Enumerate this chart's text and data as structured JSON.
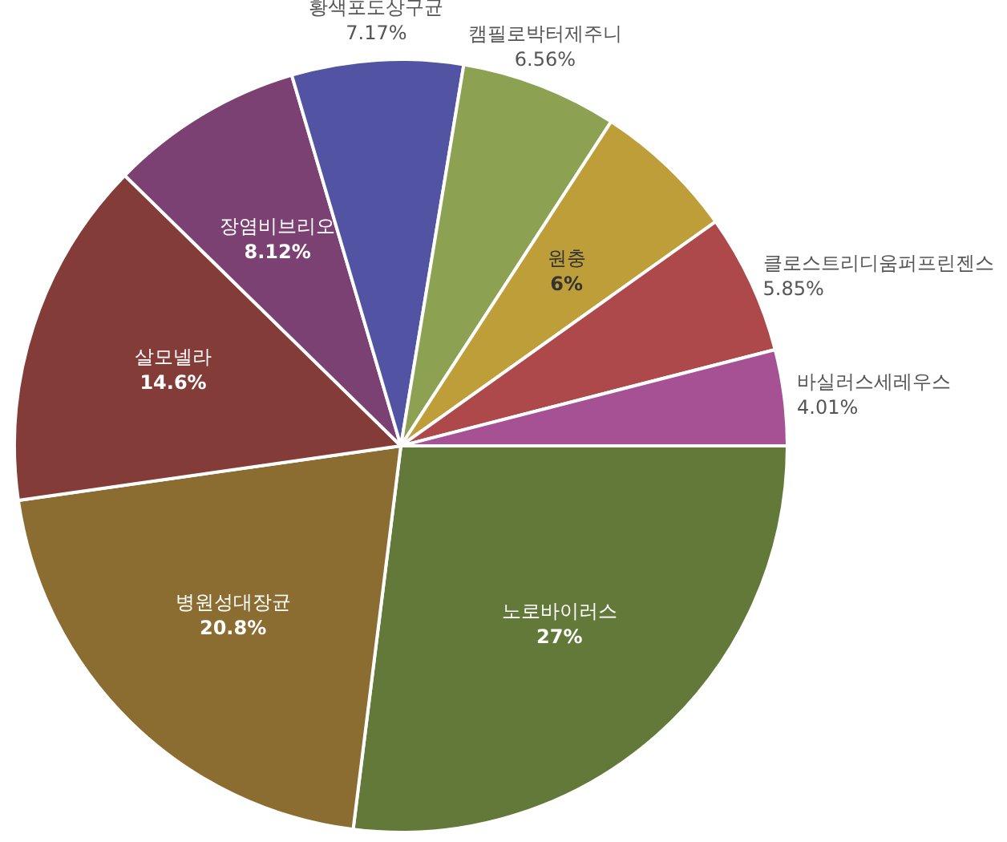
{
  "chart_data": {
    "type": "pie",
    "categories": [
      "노로바이러스",
      "병원성대장균",
      "살모넬라",
      "장염비브리오",
      "황색포도상구균",
      "캠필로박터제주니",
      "원충",
      "클로스트리디움퍼프린젠스",
      "바실러스세레우스"
    ],
    "values": [
      27,
      20.8,
      14.6,
      8.12,
      7.17,
      6.56,
      6,
      5.85,
      4.01
    ],
    "colors": [
      "#637939",
      "#8c6d31",
      "#843c39",
      "#7b4173",
      "#5254a3",
      "#8ca252",
      "#bd9e39",
      "#ad494a",
      "#a55194"
    ],
    "value_labels": [
      "27%",
      "20.8%",
      "14.6%",
      "8.12%",
      "7.17%",
      "6.56%",
      "6%",
      "5.85%",
      "4.01%"
    ],
    "legend": false
  }
}
